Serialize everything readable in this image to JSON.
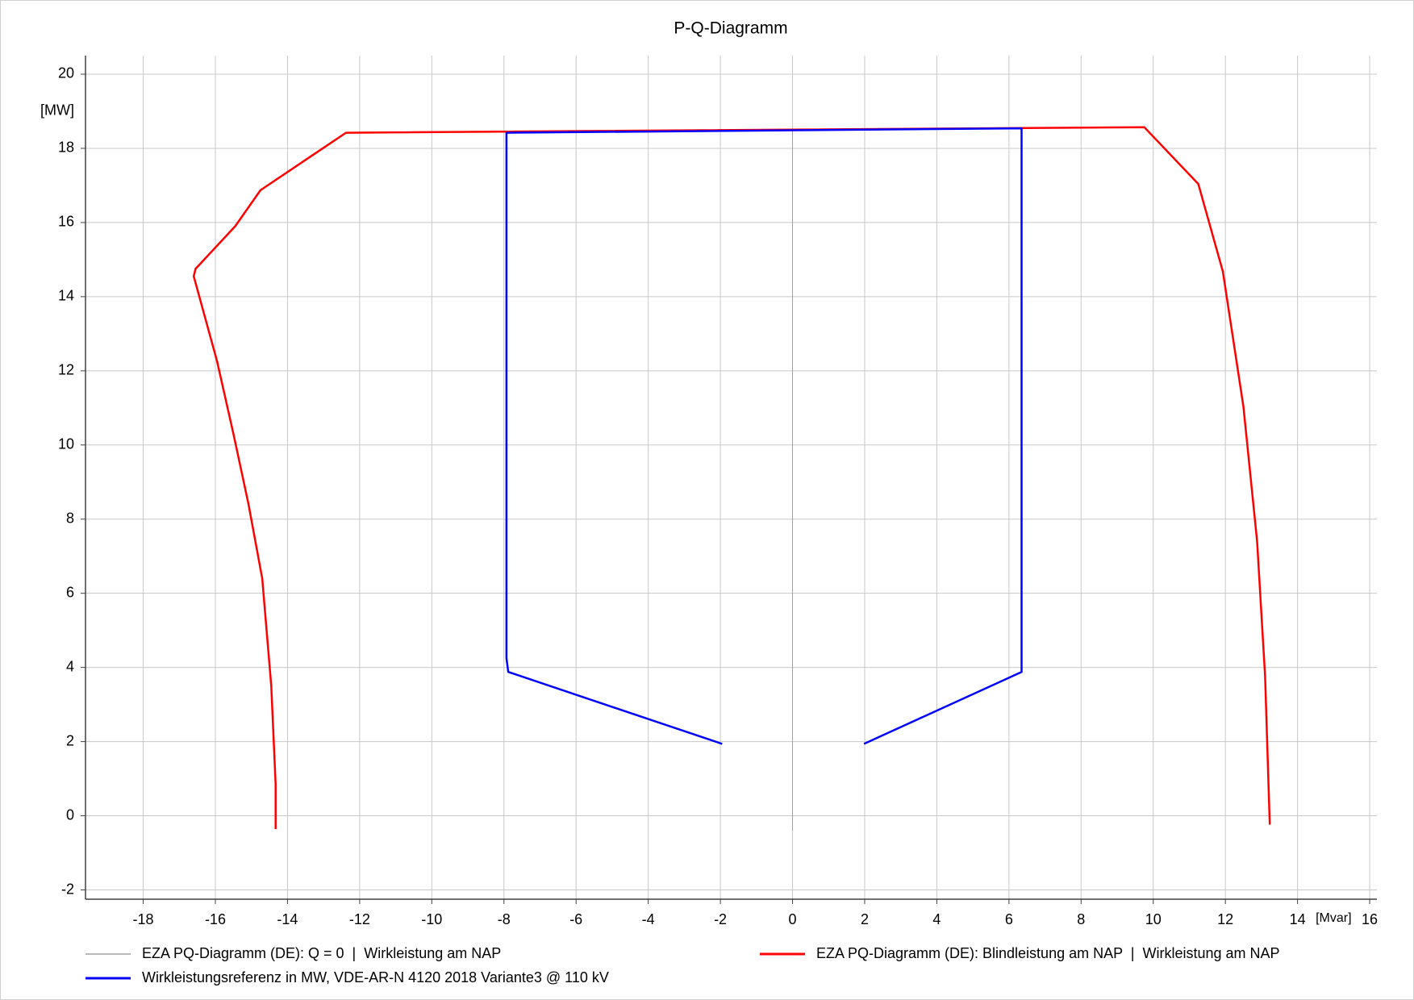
{
  "chart_data": {
    "type": "line",
    "title": "P-Q-Diagramm",
    "xlabel": "[Mvar]",
    "ylabel": "[MW]",
    "xlim": [
      -19.6,
      16.2
    ],
    "ylim": [
      -2.25,
      20.5
    ],
    "xticks": [
      -18,
      -16,
      -14,
      -12,
      -10,
      -8,
      -6,
      -4,
      -2,
      0,
      2,
      4,
      6,
      8,
      10,
      12,
      14,
      16
    ],
    "yticks": [
      -2,
      0,
      2,
      4,
      6,
      8,
      10,
      12,
      14,
      16,
      18,
      20
    ],
    "grid": true,
    "series": [
      {
        "name": "EZA PQ-Diagramm (DE): Q = 0  |  Wirkleistung am NAP",
        "color": "#a0a0a0",
        "width": 1,
        "x": [
          0,
          0
        ],
        "values": [
          -0.4,
          18.5
        ]
      },
      {
        "name": "EZA PQ-Diagramm (DE): Blindleistung am NAP  |  Wirkleistung am NAP",
        "color": "#ff0000",
        "width": 2.5,
        "x": [
          -14.33,
          -14.33,
          -14.45,
          -14.7,
          -15.08,
          -15.5,
          -15.95,
          -16.6,
          -16.55,
          -15.45,
          -14.75,
          -13.45,
          -12.38,
          9.75,
          11.25,
          11.93,
          12.5,
          12.88,
          13.1,
          13.23
        ],
        "values": [
          -0.36,
          0.85,
          3.5,
          6.4,
          8.4,
          10.3,
          12.25,
          14.55,
          14.75,
          15.9,
          16.87,
          17.72,
          18.42,
          18.57,
          17.04,
          14.68,
          11.04,
          7.4,
          3.76,
          -0.24
        ]
      },
      {
        "name": "Wirkleistungsreferenz in MW, VDE-AR-N 4120 2018 Variante3 @ 110 kV",
        "color": "#0000ff",
        "width": 2.5,
        "x": [
          -1.95,
          -7.88,
          -7.93,
          -7.93,
          6.35,
          6.35,
          1.98
        ],
        "values": [
          1.94,
          3.88,
          4.25,
          18.42,
          18.54,
          3.88,
          1.94
        ]
      }
    ]
  }
}
